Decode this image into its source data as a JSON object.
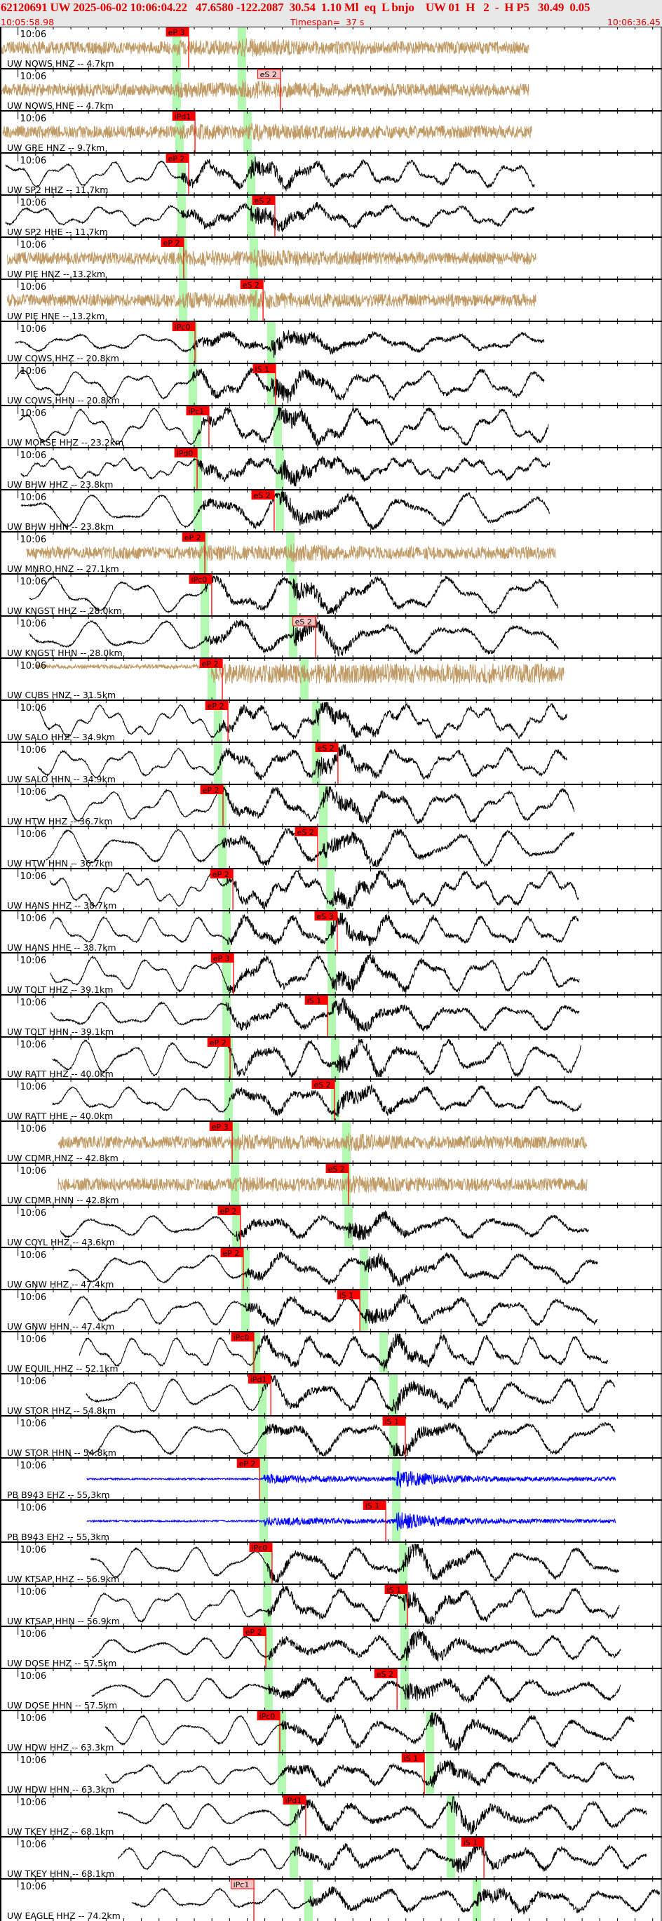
{
  "header": {
    "event_line": "62120691 UW 2025-06-02 10:06:04.22   47.6580 -122.2087  30.54  1.10 Ml  eq  L bnjo    UW 01  H   2  -  H P5   30.49  0.05",
    "window_start": "10:05:58.98",
    "timespan": "Timespan=  37 s",
    "window_end": "10:06:36.45"
  },
  "chart_data": {
    "type": "line",
    "title": "",
    "xlabel": "",
    "ylabel": "",
    "x_range": [
      "10:05:58.98",
      "10:06:36.45"
    ],
    "tick_interval_s": 1,
    "minute_tick_label": "10:06",
    "colors": {
      "accelerometer": "#c09a64",
      "velocity": "#000000",
      "strain_seismometer": "#0000ff",
      "pick": "#ff0000",
      "pick_pale": "#f4c4c4",
      "predicted_band": "#b3f8b0",
      "header_bg": "#e8e8e8"
    },
    "traces": [
      {
        "label": "UW NOWS HNZ -- 4.7km",
        "color": "accelerometer",
        "start": "10:05:58.98",
        "pred_p": "10:06:09.00",
        "pred_s": "10:06:12.70",
        "picks": [
          {
            "label": "eP 3",
            "time": "10:06:09.68",
            "pale": false
          }
        ]
      },
      {
        "label": "UW NOWS HNE -- 4.7km",
        "color": "accelerometer",
        "start": "10:05:58.98",
        "pred_p": "10:06:09.00",
        "pred_s": "10:06:12.70",
        "picks": [
          {
            "label": "eS 2",
            "time": "10:06:14.89",
            "pale": true
          }
        ]
      },
      {
        "label": "UW GRE HNZ -- 9.7km",
        "color": "accelerometer",
        "start": "10:05:59.14",
        "pred_p": "10:06:09.16",
        "pred_s": "10:06:13.02",
        "picks": [
          {
            "label": "iPd1",
            "time": "10:06:10.04",
            "pale": false
          }
        ]
      },
      {
        "label": "UW SP2 HHZ -- 11.7km",
        "color": "velocity",
        "start": "10:05:59.30",
        "pred_p": "10:06:09.28",
        "pred_s": "10:06:13.22",
        "picks": [
          {
            "label": "eP 2",
            "time": "10:06:09.68",
            "pale": false
          }
        ]
      },
      {
        "label": "UW SP2 HHE -- 11.7km",
        "color": "velocity",
        "start": "10:05:59.30",
        "pred_p": "10:06:09.28",
        "pred_s": "10:06:13.22",
        "picks": [
          {
            "label": "eS 2",
            "time": "10:06:14.57",
            "pale": false
          }
        ]
      },
      {
        "label": "UW PIE HNZ -- 13.2km",
        "color": "accelerometer",
        "start": "10:05:59.38",
        "pred_p": "10:06:09.36",
        "pred_s": "10:06:13.38",
        "picks": [
          {
            "label": "eP 2",
            "time": "10:06:09.40",
            "pale": false
          }
        ]
      },
      {
        "label": "UW PIE HNE -- 13.2km",
        "color": "accelerometer",
        "start": "10:05:59.38",
        "pred_p": "10:06:09.36",
        "pred_s": "10:06:13.38",
        "picks": [
          {
            "label": "eS 2",
            "time": "10:06:13.90",
            "pale": false
          }
        ]
      },
      {
        "label": "UW COWS HHZ -- 20.8km",
        "color": "velocity",
        "start": "10:05:59.86",
        "pred_p": "10:06:09.92",
        "pred_s": "10:06:14.37",
        "picks": [
          {
            "label": "iPc0",
            "time": "10:06:10.04",
            "pale": false
          }
        ]
      },
      {
        "label": "UW COWS HHN -- 20.8km",
        "color": "velocity",
        "start": "10:05:59.86",
        "pred_p": "10:06:09.92",
        "pred_s": "10:06:14.37",
        "picks": [
          {
            "label": "iS 1",
            "time": "10:06:14.61",
            "pale": false
          }
        ]
      },
      {
        "label": "UW MORSE HHZ -- 23.2km",
        "color": "velocity",
        "start": "10:06:00.09",
        "pred_p": "10:06:10.16",
        "pred_s": "10:06:14.73",
        "picks": [
          {
            "label": "iPc1",
            "time": "10:06:10.83",
            "pale": false
          }
        ]
      },
      {
        "label": "UW BHW HHZ -- 23.8km",
        "color": "velocity",
        "start": "10:06:00.17",
        "pred_p": "10:06:10.20",
        "pred_s": "10:06:14.85",
        "picks": [
          {
            "label": "iPd0",
            "time": "10:06:10.16",
            "pale": false
          }
        ]
      },
      {
        "label": "UW BHW HHN -- 23.8km",
        "color": "velocity",
        "start": "10:06:00.17",
        "pred_p": "10:06:10.20",
        "pred_s": "10:06:14.85",
        "picks": [
          {
            "label": "eS 2",
            "time": "10:06:14.53",
            "pale": false
          }
        ]
      },
      {
        "label": "UW MNRO HNZ -- 27.1km",
        "color": "accelerometer",
        "start": "10:06:00.49",
        "pred_p": "10:06:10.52",
        "pred_s": "10:06:15.45",
        "picks": [
          {
            "label": "eP 2",
            "time": "10:06:10.60",
            "pale": false
          }
        ]
      },
      {
        "label": "UW KNGST HHZ -- 28.0km",
        "color": "velocity",
        "start": "10:06:00.65",
        "pred_p": "10:06:10.60",
        "pred_s": "10:06:15.61",
        "picks": [
          {
            "label": "iPc0",
            "time": "10:06:10.99",
            "pale": false
          }
        ]
      },
      {
        "label": "UW KNGST HHN -- 28.0km",
        "color": "velocity",
        "start": "10:06:00.65",
        "pred_p": "10:06:10.60",
        "pred_s": "10:06:15.61",
        "picks": [
          {
            "label": "eS 2",
            "time": "10:06:16.88",
            "pale": true
          }
        ]
      },
      {
        "label": "UW CUBS HNZ -- 31.5km",
        "color": "accelerometer",
        "start": "10:06:00.97",
        "pred_p": "10:06:10.99",
        "pred_s": "10:06:16.24",
        "picks": [
          {
            "label": "eP 2",
            "time": "10:06:11.59",
            "pale": false
          }
        ]
      },
      {
        "label": "UW SALO HHZ -- 34.9km",
        "color": "velocity",
        "start": "10:06:01.13",
        "pred_p": "10:06:11.35",
        "pred_s": "10:06:16.92",
        "picks": [
          {
            "label": "eP 2",
            "time": "10:06:11.91",
            "pale": false
          }
        ]
      },
      {
        "label": "UW SALO HHN -- 34.9km",
        "color": "velocity",
        "start": "10:06:01.13",
        "pred_p": "10:06:11.35",
        "pred_s": "10:06:16.92",
        "picks": [
          {
            "label": "eS 2",
            "time": "10:06:18.15",
            "pale": false
          }
        ]
      },
      {
        "label": "UW HTW HHZ -- 36.7km",
        "color": "velocity",
        "start": "10:06:01.57",
        "pred_p": "10:06:11.59",
        "pred_s": "10:06:17.32",
        "picks": [
          {
            "label": "eP 2",
            "time": "10:06:11.63",
            "pale": false
          }
        ]
      },
      {
        "label": "UW HTW HHN -- 36.7km",
        "color": "velocity",
        "start": "10:06:01.57",
        "pred_p": "10:06:11.59",
        "pred_s": "10:06:17.32",
        "picks": [
          {
            "label": "eS 2",
            "time": "10:06:17.00",
            "pale": false
          }
        ]
      },
      {
        "label": "UW HANS HHZ -- 38.7km",
        "color": "velocity",
        "start": "10:06:01.80",
        "pred_p": "10:06:11.83",
        "pred_s": "10:06:17.72",
        "picks": [
          {
            "label": "eP 2",
            "time": "10:06:12.19",
            "pale": false
          }
        ]
      },
      {
        "label": "UW HANS HHE -- 38.7km",
        "color": "velocity",
        "start": "10:06:01.80",
        "pred_p": "10:06:11.83",
        "pred_s": "10:06:17.72",
        "picks": [
          {
            "label": "eS 3",
            "time": "10:06:18.11",
            "pale": false
          }
        ]
      },
      {
        "label": "UW TOLT HHZ -- 39.1km",
        "color": "velocity",
        "start": "10:06:01.84",
        "pred_p": "10:06:11.83",
        "pred_s": "10:06:17.80",
        "picks": [
          {
            "label": "eP 3",
            "time": "10:06:12.23",
            "pale": false
          }
        ]
      },
      {
        "label": "UW TOLT HHN -- 39.1km",
        "color": "velocity",
        "start": "10:06:01.84",
        "pred_p": "10:06:11.83",
        "pred_s": "10:06:17.80",
        "picks": [
          {
            "label": "iS 1",
            "time": "10:06:17.56",
            "pale": false
          }
        ]
      },
      {
        "label": "UW RATT HHZ -- 40.0km",
        "color": "velocity",
        "start": "10:06:01.96",
        "pred_p": "10:06:11.95",
        "pred_s": "10:06:17.99",
        "picks": [
          {
            "label": "eP 2",
            "time": "10:06:12.03",
            "pale": false
          }
        ]
      },
      {
        "label": "UW RATT HHE -- 40.0km",
        "color": "velocity",
        "start": "10:06:01.96",
        "pred_p": "10:06:11.95",
        "pred_s": "10:06:17.99",
        "picks": [
          {
            "label": "eS 2",
            "time": "10:06:17.95",
            "pale": false
          }
        ]
      },
      {
        "label": "UW CDMR HNZ -- 42.8km",
        "color": "accelerometer",
        "start": "10:06:02.28",
        "pred_p": "10:06:12.31",
        "pred_s": "10:06:18.63",
        "picks": [
          {
            "label": "eP 3",
            "time": "10:06:12.15",
            "pale": false
          }
        ]
      },
      {
        "label": "UW CDMR HNN -- 42.8km",
        "color": "accelerometer",
        "start": "10:06:02.28",
        "pred_p": "10:06:12.31",
        "pred_s": "10:06:18.63",
        "picks": [
          {
            "label": "eS 2",
            "time": "10:06:18.75",
            "pale": false
          }
        ]
      },
      {
        "label": "UW COYL HHZ -- 43.6km",
        "color": "velocity",
        "start": "10:06:02.40",
        "pred_p": "10:06:12.39",
        "pred_s": "10:06:18.75",
        "picks": [
          {
            "label": "eP 2",
            "time": "10:06:12.62",
            "pale": false
          }
        ]
      },
      {
        "label": "UW GNW HHZ -- 47.4km",
        "color": "velocity",
        "start": "10:06:02.88",
        "pred_p": "10:06:12.90",
        "pred_s": "10:06:19.63",
        "picks": [
          {
            "label": "eP 2",
            "time": "10:06:12.78",
            "pale": false
          }
        ]
      },
      {
        "label": "UW GNW HHN -- 47.4km",
        "color": "velocity",
        "start": "10:06:02.88",
        "pred_p": "10:06:12.90",
        "pred_s": "10:06:19.63",
        "picks": [
          {
            "label": "iS 1",
            "time": "10:06:19.39",
            "pale": false
          }
        ]
      },
      {
        "label": "UW EQUIL HHZ -- 52.1km",
        "color": "velocity",
        "start": "10:06:03.48",
        "pred_p": "10:06:13.50",
        "pred_s": "10:06:20.74",
        "picks": [
          {
            "label": "iPc0",
            "time": "10:06:13.38",
            "pale": false
          }
        ]
      },
      {
        "label": "UW STOR HHZ -- 54.8km",
        "color": "velocity",
        "start": "10:06:03.87",
        "pred_p": "10:06:13.86",
        "pred_s": "10:06:21.30",
        "picks": [
          {
            "label": "iPd1",
            "time": "10:06:14.34",
            "pale": false
          }
        ]
      },
      {
        "label": "UW STOR HHN -- 54.8km",
        "color": "velocity",
        "start": "10:06:03.87",
        "pred_p": "10:06:13.86",
        "pred_s": "10:06:21.30",
        "picks": [
          {
            "label": "iS 1",
            "time": "10:06:21.97",
            "pale": false
          }
        ]
      },
      {
        "label": "PB B943 EHZ -- 55.3km",
        "color": "strain_seismometer",
        "start": "10:06:03.91",
        "pred_p": "10:06:13.94",
        "pred_s": "10:06:21.46",
        "picks": [
          {
            "label": "eP 2",
            "time": "10:06:13.70",
            "pale": false
          }
        ]
      },
      {
        "label": "PB B943 EH2 -- 55.3km",
        "color": "strain_seismometer",
        "start": "10:06:03.91",
        "pred_p": "10:06:13.94",
        "pred_s": "10:06:21.46",
        "picks": [
          {
            "label": "iS 1",
            "time": "10:06:20.86",
            "pale": false
          }
        ]
      },
      {
        "label": "UW KTSAP HHZ -- 56.9km",
        "color": "velocity",
        "start": "10:06:04.11",
        "pred_p": "10:06:14.14",
        "pred_s": "10:06:21.85",
        "picks": [
          {
            "label": "iPc0",
            "time": "10:06:14.41",
            "pale": false
          }
        ]
      },
      {
        "label": "UW KTSAP HHN -- 56.9km",
        "color": "velocity",
        "start": "10:06:04.11",
        "pred_p": "10:06:14.14",
        "pred_s": "10:06:21.85",
        "picks": [
          {
            "label": "iS 1",
            "time": "10:06:22.09",
            "pale": false
          }
        ]
      },
      {
        "label": "UW DOSE HHZ -- 57.5km",
        "color": "velocity",
        "start": "10:06:04.19",
        "pred_p": "10:06:14.22",
        "pred_s": "10:06:21.93",
        "picks": [
          {
            "label": "eP 2",
            "time": "10:06:14.06",
            "pale": false
          }
        ]
      },
      {
        "label": "UW DOSE HHN -- 57.5km",
        "color": "velocity",
        "start": "10:06:04.19",
        "pred_p": "10:06:14.22",
        "pred_s": "10:06:21.93",
        "picks": [
          {
            "label": "eS 2",
            "time": "10:06:21.50",
            "pale": false
          }
        ]
      },
      {
        "label": "UW HDW HHZ -- 63.3km",
        "color": "velocity",
        "start": "10:06:04.95",
        "pred_p": "10:06:14.97",
        "pred_s": "10:06:23.37",
        "picks": [
          {
            "label": "iPc0",
            "time": "10:06:14.85",
            "pale": false
          }
        ]
      },
      {
        "label": "UW HDW HHN -- 63.3km",
        "color": "velocity",
        "start": "10:06:04.95",
        "pred_p": "10:06:14.97",
        "pred_s": "10:06:23.37",
        "picks": [
          {
            "label": "iS 1",
            "time": "10:06:23.05",
            "pale": false
          }
        ]
      },
      {
        "label": "UW TKEY HHZ -- 68.1km",
        "color": "velocity",
        "start": "10:06:05.66",
        "pred_p": "10:06:15.65",
        "pred_s": "10:06:24.56",
        "picks": [
          {
            "label": "iPd1",
            "time": "10:06:16.32",
            "pale": false
          }
        ]
      },
      {
        "label": "UW TKEY HHN -- 68.1km",
        "color": "velocity",
        "start": "10:06:05.66",
        "pred_p": "10:06:15.65",
        "pred_s": "10:06:24.56",
        "picks": [
          {
            "label": "iS 1",
            "time": "10:06:26.43",
            "pale": false
          }
        ]
      },
      {
        "label": "UW EAGLE HHZ -- 74.2km",
        "color": "velocity",
        "start": "10:06:06.46",
        "pred_p": "10:06:16.48",
        "pred_s": "10:06:26.03",
        "picks": [
          {
            "label": "iPc1",
            "time": "10:06:13.38",
            "pale": true
          }
        ]
      }
    ]
  }
}
